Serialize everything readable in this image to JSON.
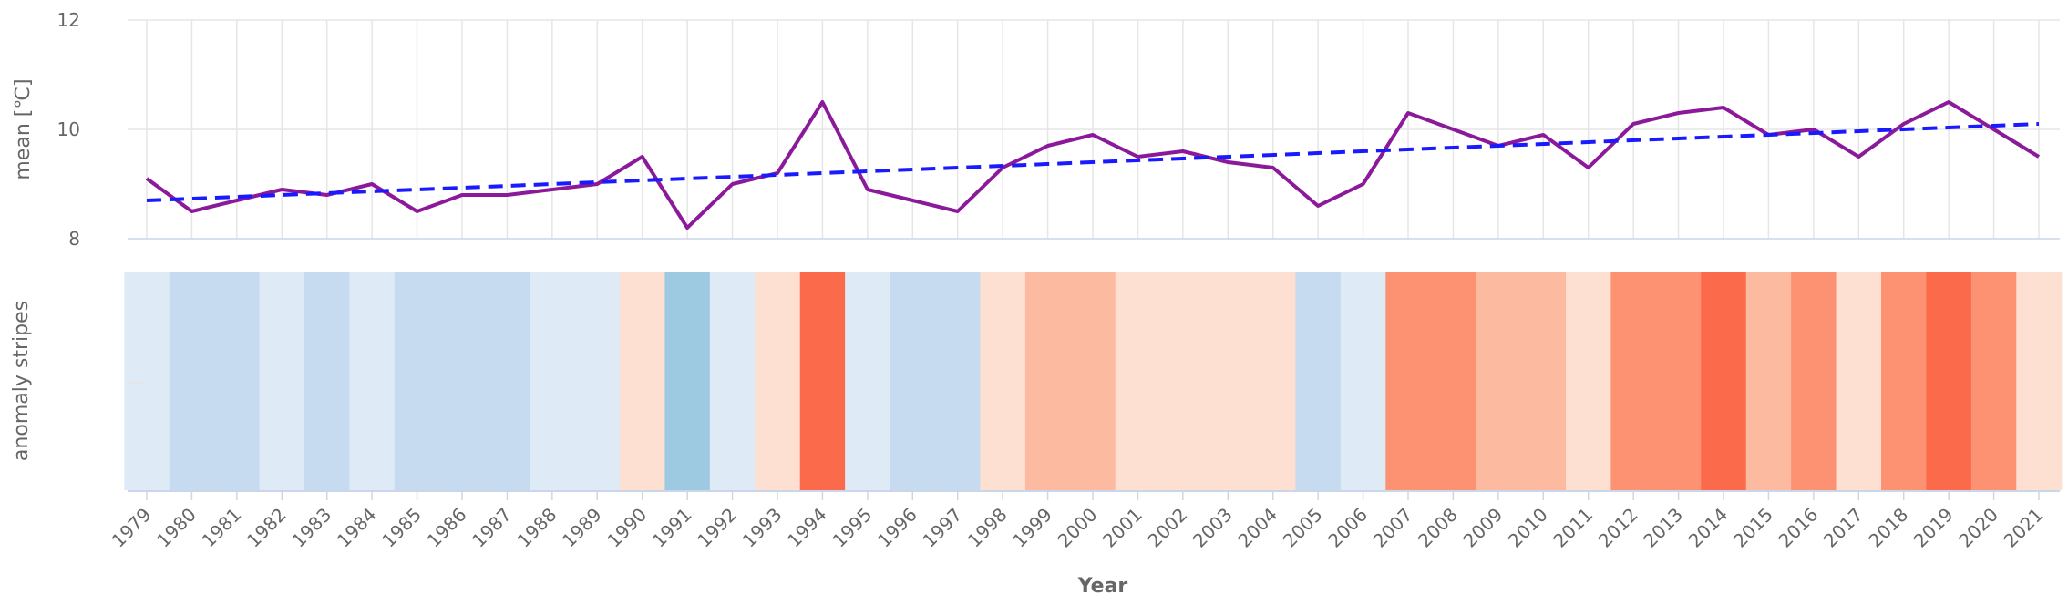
{
  "chart_data": {
    "type": "line+heatmap",
    "xlabel": "Year",
    "years": [
      1979,
      1980,
      1981,
      1982,
      1983,
      1984,
      1985,
      1986,
      1987,
      1988,
      1989,
      1990,
      1991,
      1992,
      1993,
      1994,
      1995,
      1996,
      1997,
      1998,
      1999,
      2000,
      2001,
      2002,
      2003,
      2004,
      2005,
      2006,
      2007,
      2008,
      2009,
      2010,
      2011,
      2012,
      2013,
      2014,
      2015,
      2016,
      2017,
      2018,
      2019,
      2020,
      2021
    ],
    "top_panel": {
      "ylabel": "mean [℃]",
      "ylim": [
        8,
        12
      ],
      "yticks": [
        8,
        10,
        12
      ],
      "grid": true,
      "series": [
        {
          "values": [
            9.1,
            8.5,
            8.7,
            8.9,
            8.8,
            9.0,
            8.5,
            8.8,
            8.8,
            8.9,
            9.0,
            9.5,
            8.2,
            9.0,
            9.2,
            10.5,
            8.9,
            8.7,
            8.5,
            9.3,
            9.7,
            9.9,
            9.5,
            9.6,
            9.4,
            9.3,
            8.6,
            9.0,
            10.3,
            10.0,
            9.7,
            9.9,
            9.3,
            10.1,
            10.3,
            10.4,
            9.9,
            10.0,
            9.5,
            10.1,
            10.5,
            10.0,
            9.5
          ],
          "color": "#8b1a9a",
          "style": "solid"
        },
        {
          "kind": "trend",
          "start": 8.7,
          "end": 10.1,
          "color": "#1a1aff",
          "style": "dashed"
        }
      ]
    },
    "bottom_panel": {
      "ylabel": "anomaly stripes",
      "stripe_colors": [
        "#deebf7",
        "#c6dbef",
        "#c6dbef",
        "#deebf7",
        "#c6dbef",
        "#deebf7",
        "#c6dbef",
        "#c6dbef",
        "#c6dbef",
        "#deebf7",
        "#deebf7",
        "#fee0d2",
        "#9ecae1",
        "#deebf7",
        "#fee0d2",
        "#fb6a4a",
        "#deebf7",
        "#c6dbef",
        "#c6dbef",
        "#fee0d2",
        "#fcbba1",
        "#fcbba1",
        "#fee0d2",
        "#fee0d2",
        "#fee0d2",
        "#fee0d2",
        "#c6dbef",
        "#deebf7",
        "#fc9272",
        "#fc9272",
        "#fcbba1",
        "#fcbba1",
        "#fee0d2",
        "#fc9272",
        "#fc9272",
        "#fb6a4a",
        "#fcbba1",
        "#fc9272",
        "#fee0d2",
        "#fc9272",
        "#fb6a4a",
        "#fc9272",
        "#fee0d2"
      ]
    }
  }
}
